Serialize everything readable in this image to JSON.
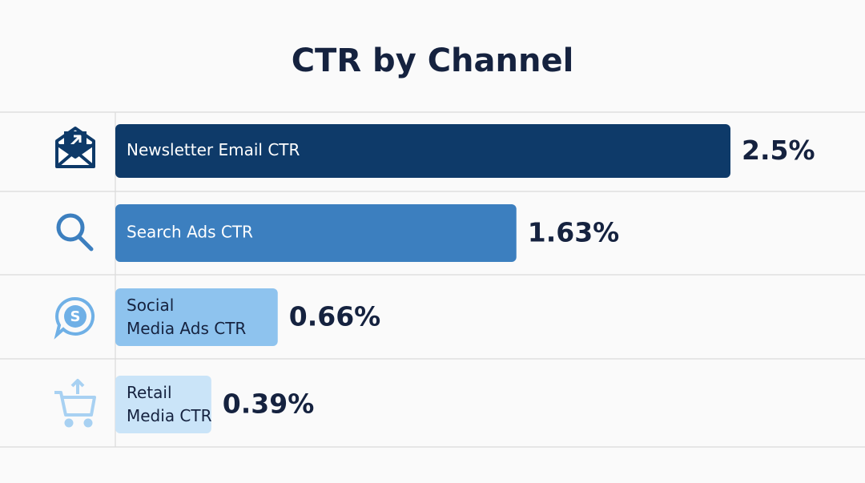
{
  "chart_data": {
    "type": "bar",
    "title": "CTR by Channel",
    "categories": [
      "Newsletter Email CTR",
      "Search Ads CTR",
      "Social Media Ads CTR",
      "Retail Media CTR"
    ],
    "values": [
      2.5,
      1.63,
      0.66,
      0.39
    ],
    "value_labels": [
      "2.5%",
      "1.63%",
      "0.66%",
      "0.39%"
    ],
    "colors": [
      "#0e3a69",
      "#3c7fbf",
      "#8ec3ee",
      "#cae4f8"
    ]
  }
}
